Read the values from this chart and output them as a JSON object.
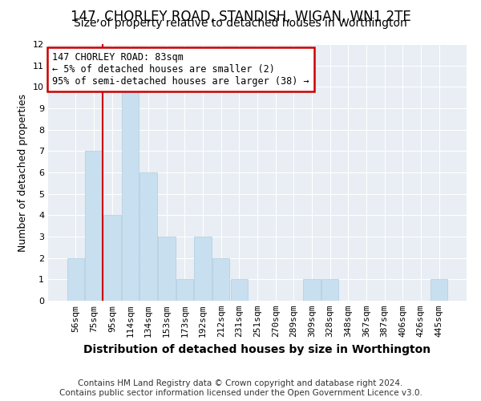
{
  "title": "147, CHORLEY ROAD, STANDISH, WIGAN, WN1 2TE",
  "subtitle": "Size of property relative to detached houses in Worthington",
  "xlabel": "Distribution of detached houses by size in Worthington",
  "ylabel": "Number of detached properties",
  "categories": [
    "56sqm",
    "75sqm",
    "95sqm",
    "114sqm",
    "134sqm",
    "153sqm",
    "173sqm",
    "192sqm",
    "212sqm",
    "231sqm",
    "251sqm",
    "270sqm",
    "289sqm",
    "309sqm",
    "328sqm",
    "348sqm",
    "367sqm",
    "387sqm",
    "406sqm",
    "426sqm",
    "445sqm"
  ],
  "values": [
    2,
    7,
    4,
    10,
    6,
    3,
    1,
    3,
    2,
    1,
    0,
    0,
    0,
    1,
    1,
    0,
    0,
    0,
    0,
    0,
    1
  ],
  "bar_color": "#c8dff0",
  "bar_edge_color": "#b0cce0",
  "redline_x": 1.5,
  "annotation_line1": "147 CHORLEY ROAD: 83sqm",
  "annotation_line2": "← 5% of detached houses are smaller (2)",
  "annotation_line3": "95% of semi-detached houses are larger (38) →",
  "annotation_box_color": "#ffffff",
  "annotation_box_edge": "#cc0000",
  "redline_color": "#cc0000",
  "ylim": [
    0,
    12
  ],
  "yticks": [
    0,
    1,
    2,
    3,
    4,
    5,
    6,
    7,
    8,
    9,
    10,
    11,
    12
  ],
  "footer": "Contains HM Land Registry data © Crown copyright and database right 2024.\nContains public sector information licensed under the Open Government Licence v3.0.",
  "title_fontsize": 12,
  "subtitle_fontsize": 10,
  "xlabel_fontsize": 10,
  "ylabel_fontsize": 9,
  "tick_fontsize": 8,
  "footer_fontsize": 7.5,
  "bg_color": "#e8eef4"
}
